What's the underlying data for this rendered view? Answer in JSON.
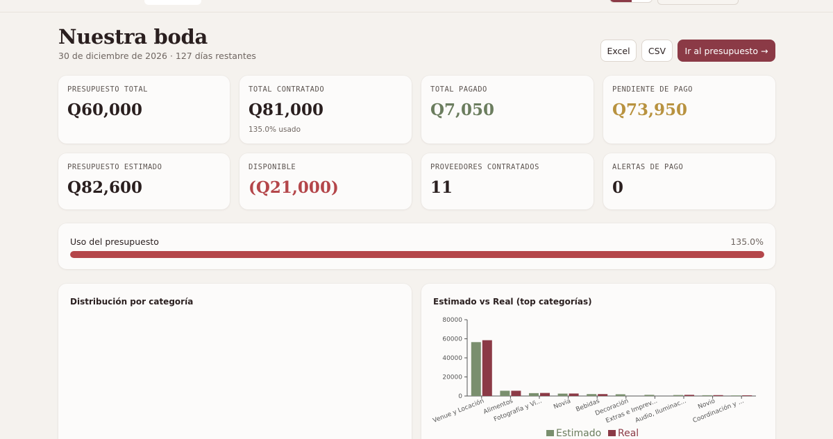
{
  "header": {
    "title": "Nuestra boda",
    "subtitle": "30 de diciembre de 2026 · 127 días restantes",
    "excel_label": "Excel",
    "csv_label": "CSV",
    "budget_button_label": "Ir al presupuesto →"
  },
  "colors": {
    "accent": "#8b3a46",
    "paid": "#6b7d5e",
    "pending": "#b8923f",
    "negative": "#b4464a",
    "estimated": "#7a8f6e",
    "real": "#8b3a46"
  },
  "stats": [
    {
      "label": "PRESUPUESTO TOTAL",
      "value": "Q60,000",
      "note": ""
    },
    {
      "label": "TOTAL CONTRATADO",
      "value": "Q81,000",
      "note": "135.0% usado"
    },
    {
      "label": "TOTAL PAGADO",
      "value": "Q7,050",
      "note": ""
    },
    {
      "label": "PENDIENTE DE PAGO",
      "value": "Q73,950",
      "note": ""
    },
    {
      "label": "PRESUPUESTO ESTIMADO",
      "value": "Q82,600",
      "note": ""
    },
    {
      "label": "DISPONIBLE",
      "value": "(Q21,000)",
      "note": ""
    },
    {
      "label": "PROVEEDORES CONTRATADOS",
      "value": "11",
      "note": ""
    },
    {
      "label": "ALERTAS DE PAGO",
      "value": "0",
      "note": ""
    }
  ],
  "usage": {
    "label": "Uso del presupuesto",
    "percent_text": "135.0%",
    "fill_fraction": 1.0
  },
  "distribution": {
    "title": "Distribución por categoría"
  },
  "chart_data": {
    "type": "bar",
    "title": "Estimado vs Real (top categorías)",
    "categories": [
      "Venue y Locación",
      "Alimentos",
      "Fotografía y Vi...",
      "Novia",
      "Bebidas",
      "Decoración",
      "Extras e Imprev...",
      "Audio, Iluminac...",
      "Novio",
      "Coordinación y ..."
    ],
    "series": [
      {
        "name": "Estimado",
        "values": [
          56500,
          5500,
          3000,
          2500,
          2000,
          1800,
          1200,
          1000,
          800,
          600
        ]
      },
      {
        "name": "Real",
        "values": [
          58500,
          5500,
          3200,
          2600,
          2000,
          0,
          0,
          1200,
          900,
          700
        ]
      }
    ],
    "yticks": [
      "0",
      "20000",
      "40000",
      "60000",
      "80000"
    ],
    "ylim": [
      0,
      80000
    ],
    "legend": "bottom"
  }
}
